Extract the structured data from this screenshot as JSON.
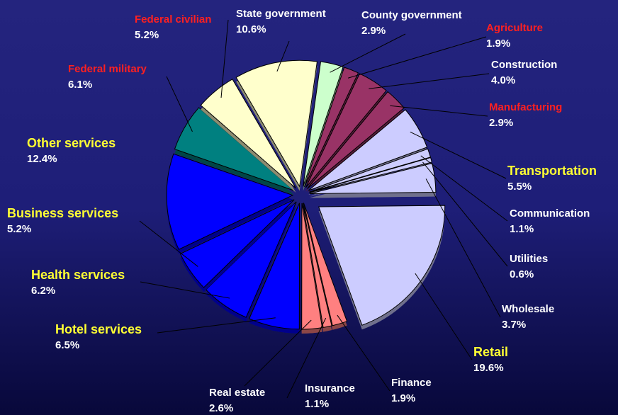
{
  "chart_data": {
    "type": "pie",
    "categories": [
      "County government",
      "Agriculture",
      "Construction",
      "Manufacturing",
      "Transportation",
      "Communication",
      "Utilities",
      "Wholesale",
      "Retail",
      "Finance",
      "Insurance",
      "Real estate",
      "Hotel services",
      "Health services",
      "Business services",
      "Other services",
      "Federal military",
      "Federal civilian",
      "State government"
    ],
    "values": [
      2.9,
      1.9,
      4.0,
      2.9,
      5.5,
      1.1,
      0.6,
      3.7,
      19.6,
      1.9,
      1.1,
      2.6,
      6.5,
      6.2,
      5.2,
      12.4,
      6.1,
      5.2,
      10.6
    ],
    "value_labels": [
      "2.9%",
      "1.9%",
      "4.0%",
      "2.9%",
      "5.5%",
      "1.1%",
      "0.6%",
      "3.7%",
      "19.6%",
      "1.9%",
      "1.1%",
      "2.6%",
      "6.5%",
      "6.2%",
      "5.2%",
      "12.4%",
      "6.1%",
      "5.2%",
      "10.6%"
    ],
    "colors": [
      "#ccffcc",
      "#993366",
      "#993366",
      "#993366",
      "#ccccff",
      "#ccccff",
      "#ccccff",
      "#ccccff",
      "#ccccff",
      "#ff8080",
      "#ff8080",
      "#ff8080",
      "#0000ff",
      "#0000ff",
      "#0000ff",
      "#0000ff",
      "#008080",
      "#ffffcc",
      "#ffffcc"
    ],
    "label_colors": [
      "#ffffff",
      "#ff2020",
      "#ffffff",
      "#ff2020",
      "#ffff33",
      "#ffffff",
      "#ffffff",
      "#ffffff",
      "#ffff33",
      "#ffffff",
      "#ffffff",
      "#ffffff",
      "#ffff33",
      "#ffff33",
      "#ffff33",
      "#ffff33",
      "#ff2020",
      "#ff2020",
      "#ffffff"
    ]
  }
}
